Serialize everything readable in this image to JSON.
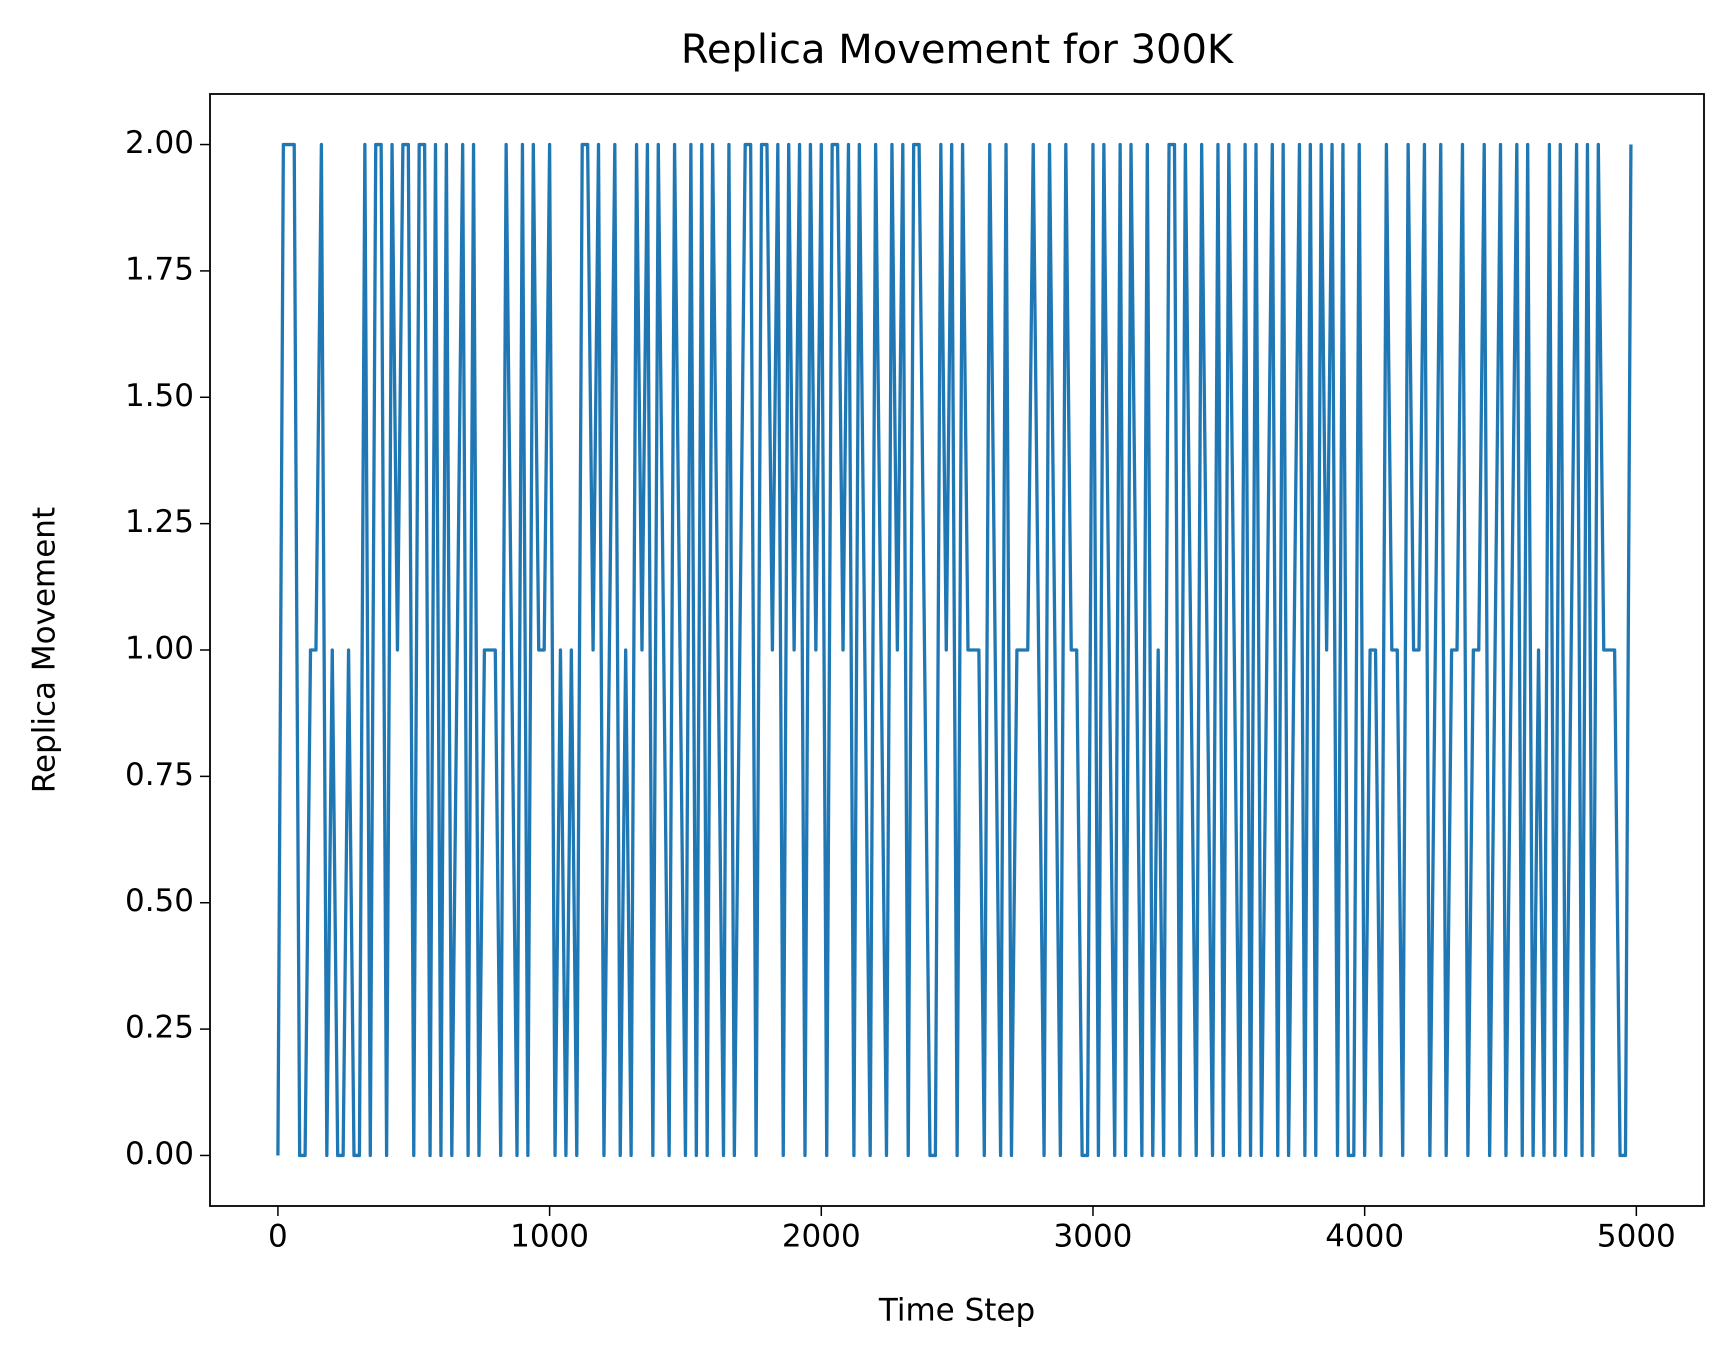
{
  "chart_data": {
    "type": "line",
    "title": "Replica Movement for 300K",
    "xlabel": "Time Step",
    "ylabel": "Replica Movement",
    "xlim": [
      -250,
      5249
    ],
    "ylim": [
      -0.1,
      2.1
    ],
    "xticks": [
      0,
      1000,
      2000,
      3000,
      4000,
      5000
    ],
    "yticks": [
      {
        "value": 0,
        "label": "0.00"
      },
      {
        "value": 0.25,
        "label": "0.25"
      },
      {
        "value": 0.5,
        "label": "0.50"
      },
      {
        "value": 0.75,
        "label": "0.75"
      },
      {
        "value": 1,
        "label": "1.00"
      },
      {
        "value": 1.25,
        "label": "1.25"
      },
      {
        "value": 1.5,
        "label": "1.50"
      },
      {
        "value": 1.75,
        "label": "1.75"
      },
      {
        "value": 2,
        "label": "2.00"
      }
    ],
    "x": [
      0,
      20,
      40,
      60,
      80,
      100,
      120,
      140,
      160,
      180,
      200,
      220,
      240,
      260,
      280,
      300,
      320,
      340,
      360,
      380,
      400,
      420,
      440,
      460,
      480,
      500,
      520,
      540,
      560,
      580,
      600,
      620,
      640,
      660,
      680,
      700,
      720,
      740,
      760,
      780,
      800,
      820,
      840,
      860,
      880,
      900,
      920,
      940,
      960,
      980,
      1000,
      1020,
      1040,
      1060,
      1080,
      1100,
      1120,
      1140,
      1160,
      1180,
      1200,
      1220,
      1240,
      1260,
      1280,
      1300,
      1320,
      1340,
      1360,
      1380,
      1400,
      1420,
      1440,
      1460,
      1480,
      1500,
      1520,
      1540,
      1560,
      1580,
      1600,
      1620,
      1640,
      1660,
      1680,
      1700,
      1720,
      1740,
      1760,
      1780,
      1800,
      1820,
      1840,
      1860,
      1880,
      1900,
      1920,
      1940,
      1960,
      1980,
      2000,
      2020,
      2040,
      2060,
      2080,
      2100,
      2120,
      2140,
      2160,
      2180,
      2200,
      2220,
      2240,
      2260,
      2280,
      2300,
      2320,
      2340,
      2360,
      2380,
      2400,
      2420,
      2440,
      2460,
      2480,
      2500,
      2520,
      2540,
      2560,
      2580,
      2600,
      2620,
      2640,
      2660,
      2680,
      2700,
      2720,
      2740,
      2760,
      2780,
      2800,
      2820,
      2840,
      2860,
      2880,
      2900,
      2920,
      2940,
      2960,
      2980,
      3000,
      3020,
      3040,
      3060,
      3080,
      3100,
      3120,
      3140,
      3160,
      3180,
      3200,
      3220,
      3240,
      3260,
      3280,
      3300,
      3320,
      3340,
      3360,
      3380,
      3400,
      3420,
      3440,
      3460,
      3480,
      3500,
      3520,
      3540,
      3560,
      3580,
      3600,
      3620,
      3640,
      3660,
      3680,
      3700,
      3720,
      3740,
      3760,
      3780,
      3800,
      3820,
      3840,
      3860,
      3880,
      3900,
      3920,
      3940,
      3960,
      3980,
      4000,
      4020,
      4040,
      4060,
      4080,
      4100,
      4120,
      4140,
      4160,
      4180,
      4200,
      4220,
      4240,
      4260,
      4280,
      4300,
      4320,
      4340,
      4360,
      4380,
      4400,
      4420,
      4440,
      4460,
      4480,
      4500,
      4520,
      4540,
      4560,
      4580,
      4600,
      4620,
      4640,
      4660,
      4680,
      4700,
      4720,
      4740,
      4760,
      4780,
      4800,
      4820,
      4840,
      4860,
      4880,
      4900,
      4920,
      4940,
      4960,
      4980
    ],
    "series": [
      {
        "name": "Replica Movement",
        "color": "#1f77b4",
        "values": [
          0,
          2,
          2,
          2,
          0,
          0,
          1,
          1,
          2,
          0,
          1,
          0,
          0,
          1,
          0,
          0,
          2,
          0,
          2,
          2,
          0,
          2,
          1,
          2,
          2,
          0,
          2,
          2,
          0,
          2,
          0,
          2,
          0,
          1,
          2,
          0,
          2,
          0,
          1,
          1,
          1,
          0,
          2,
          1,
          0,
          2,
          0,
          2,
          1,
          1,
          2,
          0,
          1,
          0,
          1,
          0,
          2,
          2,
          1,
          2,
          0,
          1,
          2,
          0,
          1,
          0,
          2,
          1,
          2,
          0,
          2,
          1,
          0,
          2,
          1,
          0,
          2,
          0,
          2,
          0,
          2,
          1,
          0,
          2,
          0,
          1,
          2,
          2,
          0,
          2,
          2,
          1,
          2,
          0,
          2,
          1,
          2,
          0,
          2,
          1,
          2,
          0,
          2,
          2,
          1,
          2,
          0,
          2,
          1,
          0,
          2,
          1,
          0,
          2,
          1,
          2,
          0,
          2,
          2,
          1,
          0,
          0,
          2,
          1,
          2,
          0,
          2,
          1,
          1,
          1,
          0,
          2,
          1,
          0,
          2,
          0,
          1,
          1,
          1,
          2,
          1,
          0,
          2,
          1,
          0,
          2,
          1,
          1,
          0,
          0,
          2,
          0,
          2,
          1,
          0,
          2,
          0,
          2,
          1,
          0,
          2,
          0,
          1,
          0,
          2,
          2,
          0,
          2,
          1,
          0,
          2,
          1,
          0,
          2,
          0,
          2,
          1,
          0,
          2,
          0,
          2,
          0,
          1,
          2,
          0,
          2,
          0,
          1,
          2,
          0,
          2,
          0,
          2,
          1,
          2,
          0,
          2,
          0,
          0,
          2,
          0,
          1,
          1,
          0,
          2,
          1,
          1,
          0,
          2,
          1,
          1,
          2,
          0,
          1,
          2,
          0,
          1,
          1,
          2,
          0,
          1,
          1,
          2,
          0,
          1,
          2,
          0,
          1,
          2,
          0,
          2,
          0,
          1,
          0,
          2,
          0,
          2,
          0,
          1,
          2,
          0,
          2,
          0,
          2,
          1,
          1,
          1,
          0,
          0,
          2
        ]
      }
    ]
  }
}
